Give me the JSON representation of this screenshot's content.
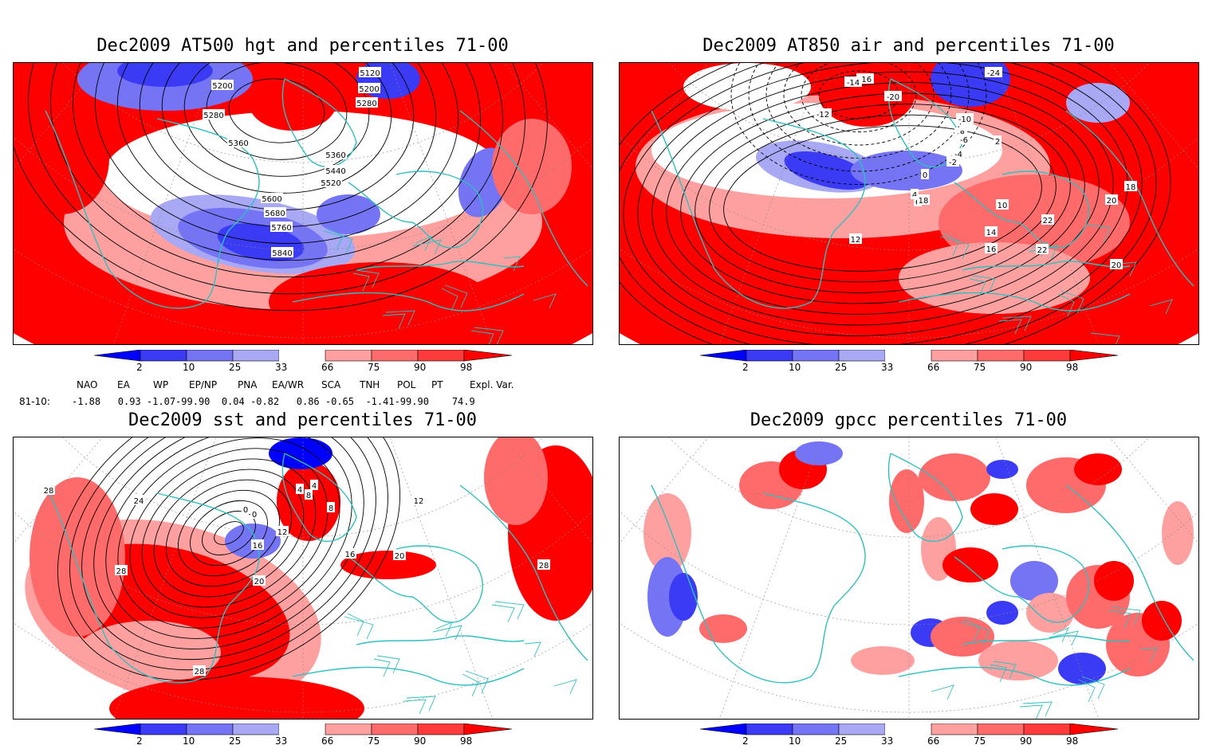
{
  "panels": [
    {
      "title": "Dec2009 AT500 hgt and percentiles 71-00",
      "contour_labels": [
        "5120",
        "5200",
        "5200",
        "5280",
        "5280",
        "5360",
        "5360",
        "5440",
        "5520",
        "5600",
        "5680",
        "5760",
        "5840"
      ]
    },
    {
      "title": "Dec2009 AT850 air and percentiles 71-00",
      "contour_labels": [
        "-24",
        "-20",
        "-16",
        "-14",
        "-12",
        "-10",
        "-8",
        "-6",
        "-4",
        "-2",
        "0",
        "2",
        "4",
        "6",
        "10",
        "12",
        "14",
        "16",
        "18",
        "18",
        "20",
        "20",
        "22",
        "22"
      ]
    },
    {
      "title": "Dec2009 sst and percentiles 71-00",
      "contour_labels": [
        "28",
        "24",
        "0",
        "0",
        "4",
        "4",
        "8",
        "8",
        "12",
        "12",
        "16",
        "16",
        "20",
        "20",
        "28",
        "28",
        "28"
      ]
    },
    {
      "title": "Dec2009 gpcc percentiles 71-00",
      "contour_labels": []
    }
  ],
  "colorbar": {
    "labels": [
      "2",
      "10",
      "25",
      "33",
      "66",
      "75",
      "90",
      "98"
    ],
    "colors": {
      "blue_dark": "#0000ff",
      "blue_mid": "#3b3bf5",
      "blue_light": "#7474f5",
      "blue_pale": "#a8a8f5",
      "white": "#ffffff",
      "red_pale": "#ffa0a0",
      "red_light": "#ff6a6a",
      "red_mid": "#ff3a3a",
      "red_dark": "#ff0000"
    }
  },
  "indices": {
    "headers": [
      "NAO",
      "EA",
      "WP",
      "EP/NP",
      "PNA",
      "EA/WR",
      "SCA",
      "TNH",
      "POL",
      "PT",
      "Expl. Var."
    ],
    "row_label": "81-10:",
    "values_line": "-1.88   0.93 -1.07-99.90  0.04 -0.82   0.86 -0.65  -1.41-99.90    74.9"
  },
  "map_colors": {
    "coast": "#2fbfbf",
    "contour": "#000000",
    "grid": "#888888"
  }
}
